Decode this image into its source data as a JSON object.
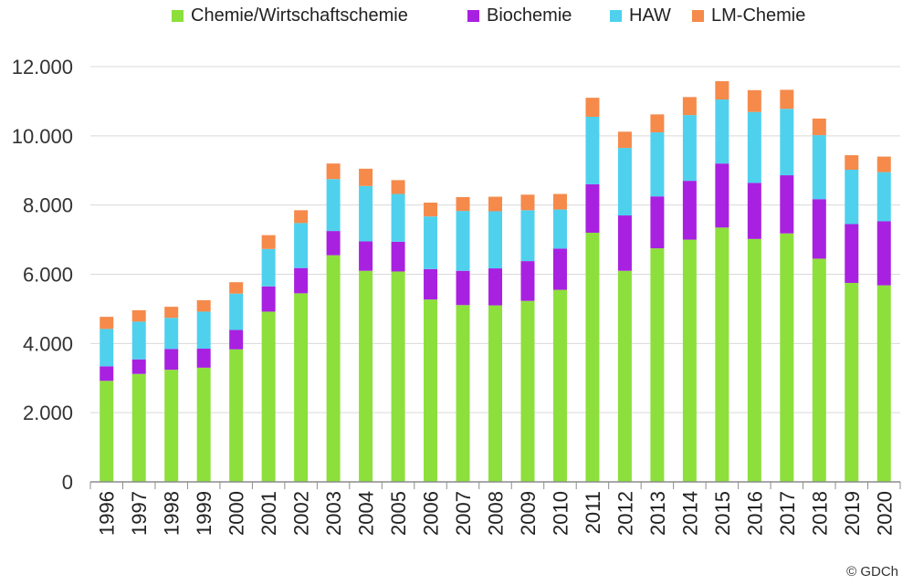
{
  "chart_data": {
    "type": "bar",
    "stacked": true,
    "categories": [
      "1996",
      "1997",
      "1998",
      "1999",
      "2000",
      "2001",
      "2002",
      "2003",
      "2004",
      "2005",
      "2006",
      "2007",
      "2008",
      "2009",
      "2010",
      "2011",
      "2012",
      "2013",
      "2014",
      "2015",
      "2016",
      "2017",
      "2018",
      "2019",
      "2020"
    ],
    "series": [
      {
        "name": "Chemie/Wirtschaftschemie",
        "color": "#8ddf3c",
        "values": [
          2920,
          3120,
          3240,
          3300,
          3830,
          4920,
          5450,
          6550,
          6100,
          6080,
          5270,
          5110,
          5100,
          5230,
          5550,
          7200,
          6100,
          6750,
          7000,
          7350,
          7020,
          7180,
          6450,
          5750,
          5680
        ]
      },
      {
        "name": "Biochemie",
        "color": "#a821e0",
        "values": [
          420,
          420,
          600,
          550,
          560,
          730,
          730,
          700,
          850,
          860,
          880,
          990,
          1070,
          1150,
          1190,
          1400,
          1600,
          1500,
          1700,
          1850,
          1620,
          1680,
          1720,
          1700,
          1850
        ]
      },
      {
        "name": "HAW",
        "color": "#4fd1ee",
        "values": [
          1080,
          1090,
          900,
          1070,
          1050,
          1080,
          1300,
          1500,
          1600,
          1380,
          1520,
          1730,
          1650,
          1470,
          1130,
          1950,
          1950,
          1850,
          1900,
          1850,
          2050,
          1920,
          1850,
          1570,
          1420
        ]
      },
      {
        "name": "LM-Chemie",
        "color": "#f58a4b",
        "values": [
          350,
          330,
          320,
          330,
          330,
          400,
          370,
          450,
          500,
          400,
          400,
          400,
          420,
          450,
          450,
          550,
          470,
          520,
          520,
          530,
          630,
          550,
          480,
          420,
          450
        ]
      }
    ],
    "yticks": [
      "0",
      "2.000",
      "4.000",
      "6.000",
      "8.000",
      "10.000",
      "12.000"
    ],
    "ylim": [
      0,
      12000
    ],
    "grid": true,
    "legend_position": "top"
  },
  "credit": "© GDCh"
}
